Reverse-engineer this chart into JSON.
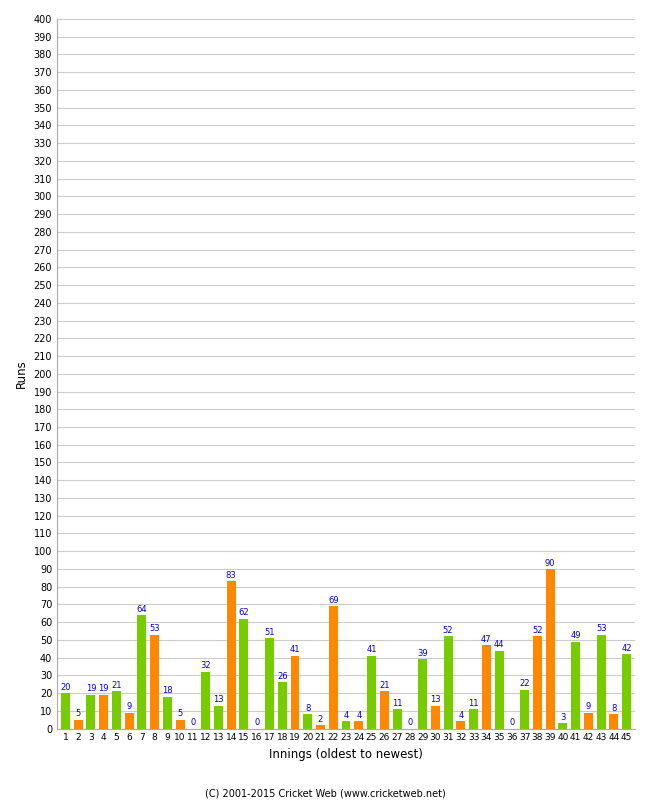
{
  "xlabel": "Innings (oldest to newest)",
  "ylabel": "Runs",
  "ylim": [
    0,
    400
  ],
  "yticks": [
    0,
    10,
    20,
    30,
    40,
    50,
    60,
    70,
    80,
    90,
    100,
    110,
    120,
    130,
    140,
    150,
    160,
    170,
    180,
    190,
    200,
    210,
    220,
    230,
    240,
    250,
    260,
    270,
    280,
    290,
    300,
    310,
    320,
    330,
    340,
    350,
    360,
    370,
    380,
    390,
    400
  ],
  "bar_color_green": "#77cc00",
  "bar_color_orange": "#ff8800",
  "label_color": "#0000cc",
  "background_color": "#ffffff",
  "grid_color": "#cccccc",
  "footer": "(C) 2001-2015 Cricket Web (www.cricketweb.net)",
  "innings_labels": [
    "1",
    "2",
    "3",
    "4",
    "5",
    "6",
    "7",
    "8",
    "9",
    "10",
    "11",
    "12",
    "13",
    "14",
    "15",
    "16",
    "17",
    "18",
    "19",
    "20",
    "21",
    "22",
    "23",
    "24",
    "25",
    "26",
    "27",
    "28",
    "29",
    "30",
    "31",
    "32",
    "33",
    "34",
    "35",
    "36",
    "37",
    "38",
    "39",
    "40",
    "41",
    "42",
    "43",
    "44",
    "45"
  ],
  "all_bars": [
    {
      "inning": 1,
      "color": "green",
      "value": 20
    },
    {
      "inning": 2,
      "color": "orange",
      "value": 5
    },
    {
      "inning": 3,
      "color": "green",
      "value": 19
    },
    {
      "inning": 4,
      "color": "orange",
      "value": 19
    },
    {
      "inning": 5,
      "color": "green",
      "value": 21
    },
    {
      "inning": 6,
      "color": "orange",
      "value": 9
    },
    {
      "inning": 7,
      "color": "green",
      "value": 64
    },
    {
      "inning": 8,
      "color": "orange",
      "value": 53
    },
    {
      "inning": 9,
      "color": "green",
      "value": 18
    },
    {
      "inning": 10,
      "color": "orange",
      "value": 5
    },
    {
      "inning": 11,
      "color": "green",
      "value": 0
    },
    {
      "inning": 12,
      "color": "green",
      "value": 32
    },
    {
      "inning": 13,
      "color": "green",
      "value": 13
    },
    {
      "inning": 14,
      "color": "orange",
      "value": 83
    },
    {
      "inning": 15,
      "color": "green",
      "value": 62
    },
    {
      "inning": 16,
      "color": "orange",
      "value": 0
    },
    {
      "inning": 17,
      "color": "green",
      "value": 51
    },
    {
      "inning": 18,
      "color": "green",
      "value": 26
    },
    {
      "inning": 19,
      "color": "orange",
      "value": 41
    },
    {
      "inning": 20,
      "color": "green",
      "value": 8
    },
    {
      "inning": 21,
      "color": "orange",
      "value": 2
    },
    {
      "inning": 22,
      "color": "orange",
      "value": 69
    },
    {
      "inning": 23,
      "color": "green",
      "value": 4
    },
    {
      "inning": 24,
      "color": "orange",
      "value": 4
    },
    {
      "inning": 25,
      "color": "green",
      "value": 41
    },
    {
      "inning": 26,
      "color": "orange",
      "value": 21
    },
    {
      "inning": 27,
      "color": "green",
      "value": 11
    },
    {
      "inning": 28,
      "color": "orange",
      "value": 0
    },
    {
      "inning": 29,
      "color": "green",
      "value": 39
    },
    {
      "inning": 30,
      "color": "orange",
      "value": 13
    },
    {
      "inning": 31,
      "color": "green",
      "value": 52
    },
    {
      "inning": 32,
      "color": "orange",
      "value": 4
    },
    {
      "inning": 33,
      "color": "green",
      "value": 11
    },
    {
      "inning": 34,
      "color": "orange",
      "value": 47
    },
    {
      "inning": 35,
      "color": "green",
      "value": 44
    },
    {
      "inning": 36,
      "color": "orange",
      "value": 0
    },
    {
      "inning": 37,
      "color": "green",
      "value": 22
    },
    {
      "inning": 38,
      "color": "orange",
      "value": 52
    },
    {
      "inning": 39,
      "color": "orange",
      "value": 90
    },
    {
      "inning": 40,
      "color": "green",
      "value": 3
    },
    {
      "inning": 41,
      "color": "green",
      "value": 49
    },
    {
      "inning": 42,
      "color": "orange",
      "value": 9
    },
    {
      "inning": 43,
      "color": "green",
      "value": 53
    },
    {
      "inning": 44,
      "color": "orange",
      "value": 8
    },
    {
      "inning": 45,
      "color": "green",
      "value": 42
    }
  ]
}
